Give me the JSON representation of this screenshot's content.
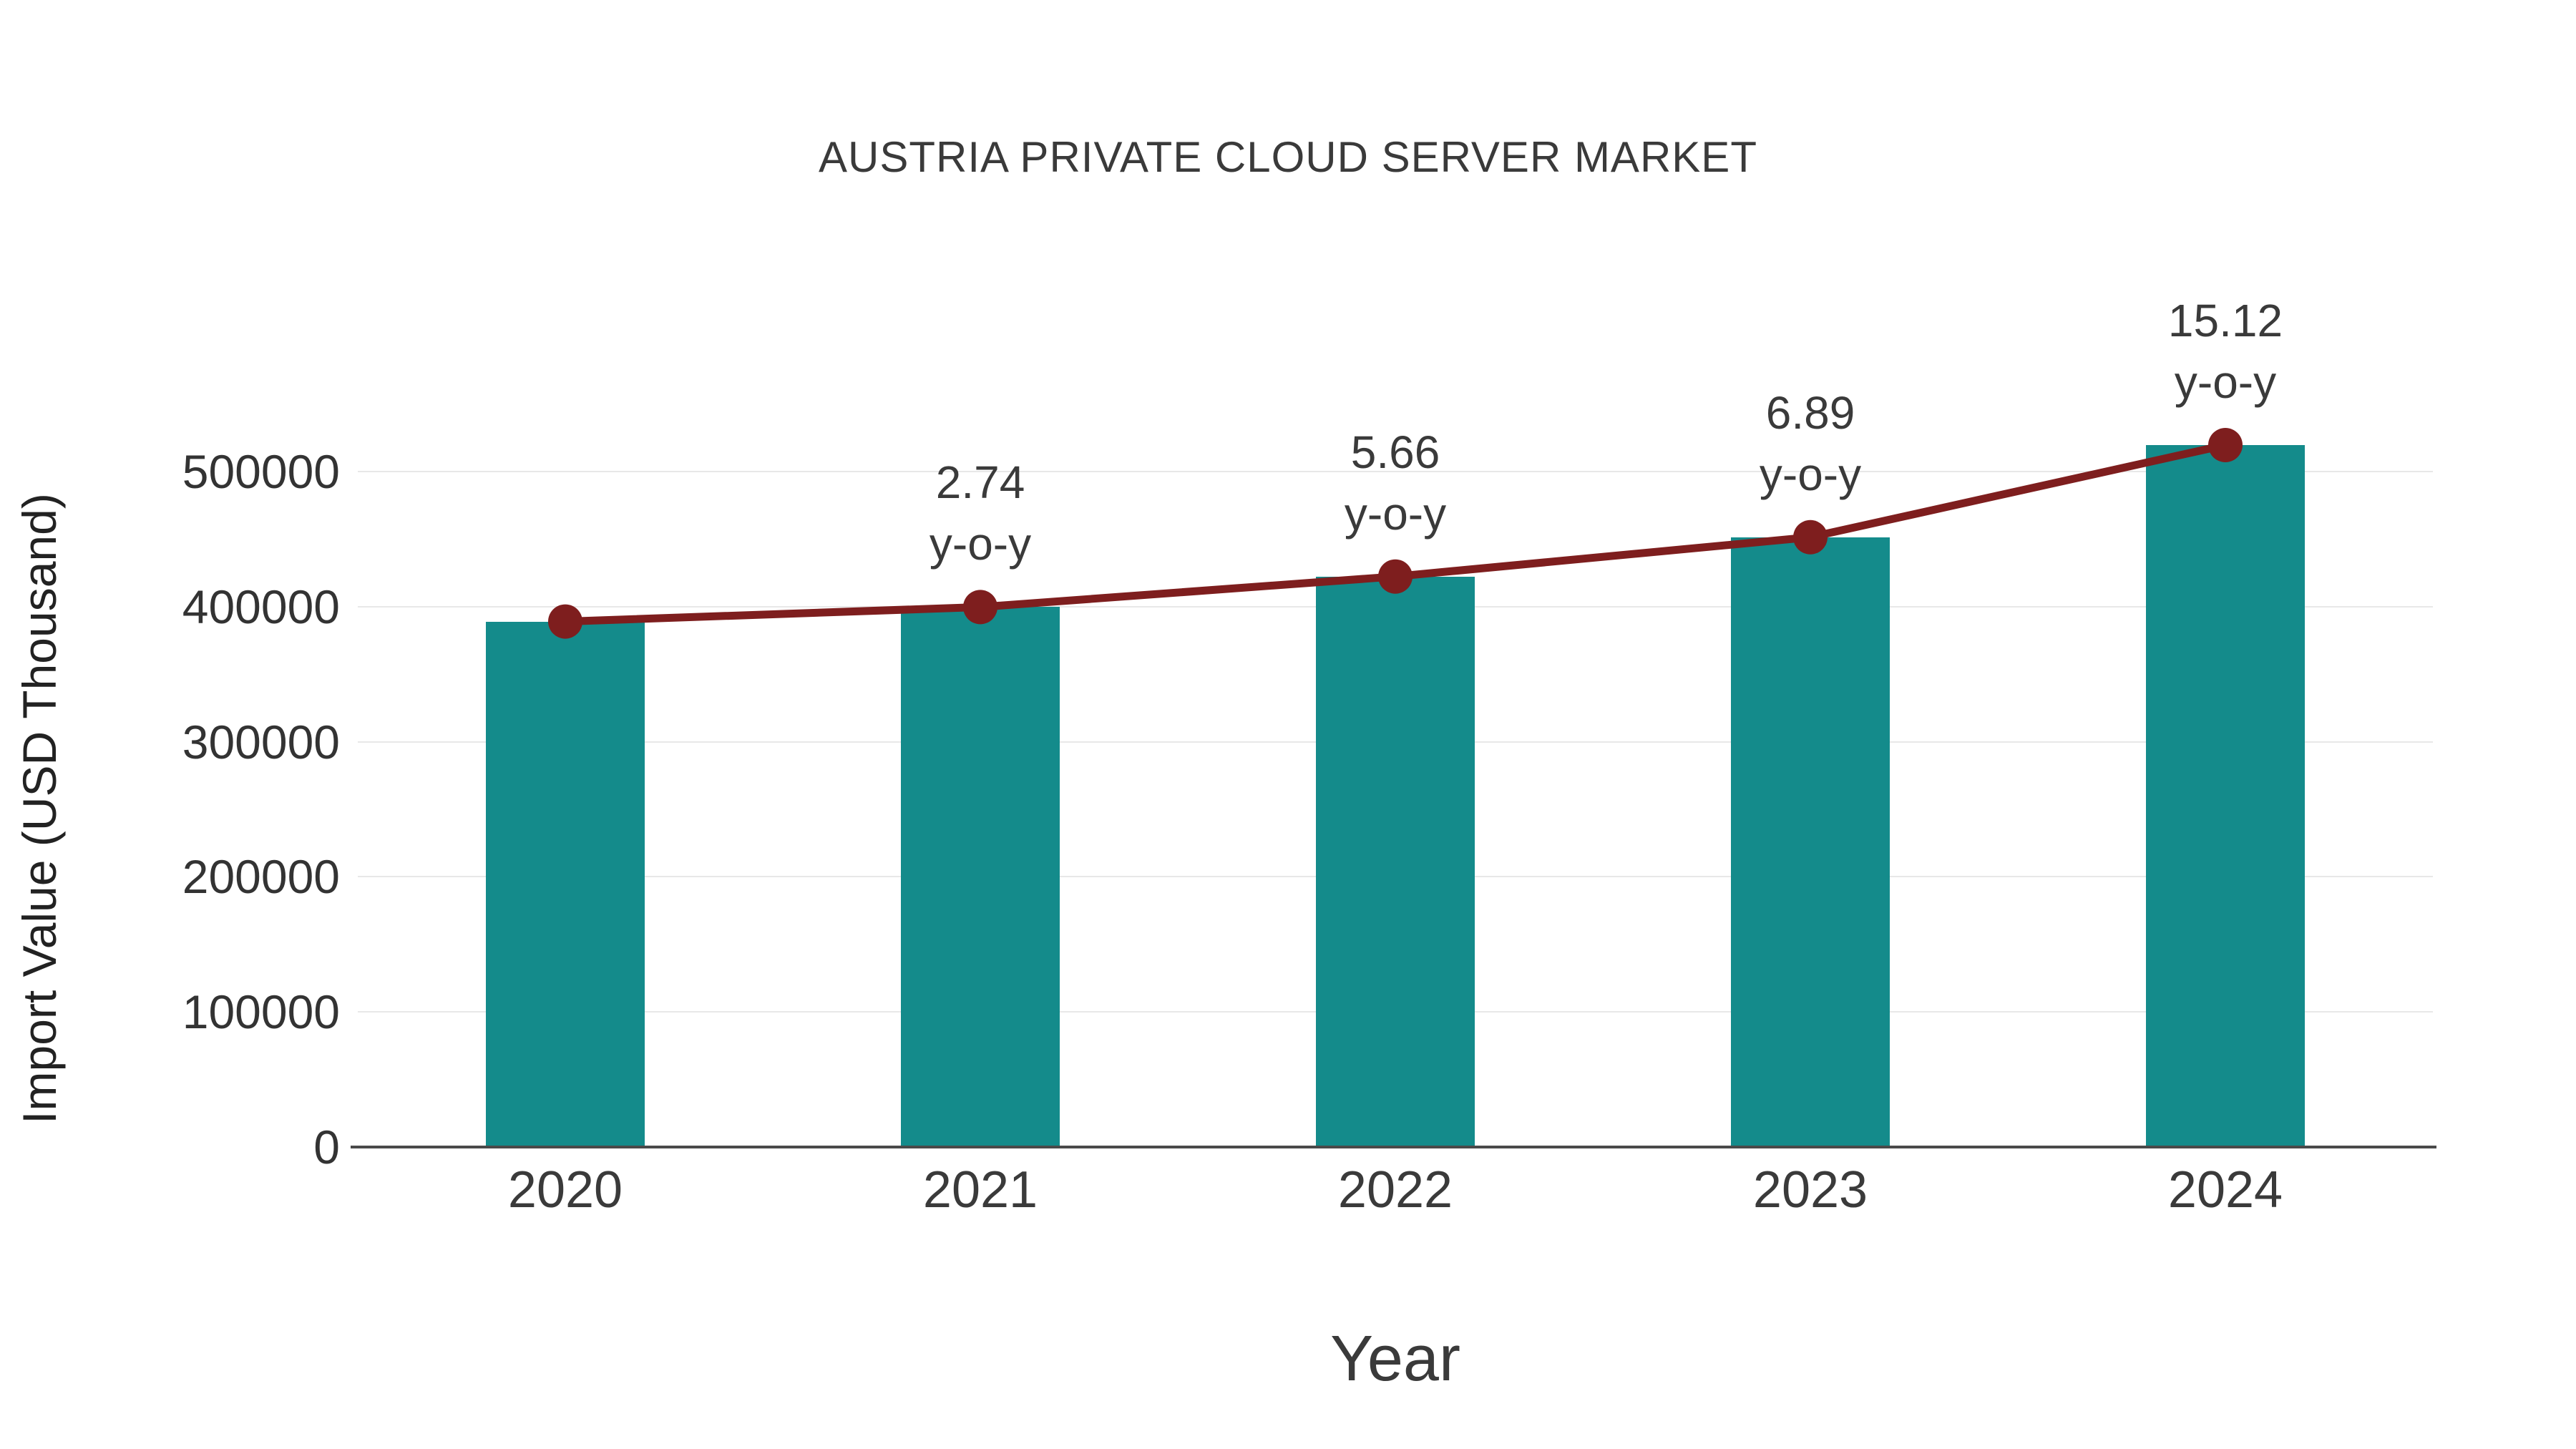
{
  "chart_data": {
    "type": "bar",
    "subtype": "bar-with-line-overlay",
    "title": "AUSTRIA PRIVATE CLOUD SERVER MARKET",
    "xlabel": "Year",
    "ylabel": "Import Value (USD Thousand)",
    "categories": [
      "2020",
      "2021",
      "2022",
      "2023",
      "2024"
    ],
    "series": [
      {
        "name": "Import Value",
        "type": "bar",
        "color": "#148b8b",
        "values": [
          389000,
          399700,
          422300,
          451400,
          519600
        ]
      },
      {
        "name": "Import Value trend line",
        "type": "line",
        "color": "#7e1e1e",
        "values": [
          389000,
          399700,
          422300,
          451400,
          519600
        ]
      }
    ],
    "annotations": [
      {
        "category": "2021",
        "text": "2.74",
        "subtext": "y-o-y"
      },
      {
        "category": "2022",
        "text": "5.66",
        "subtext": "y-o-y"
      },
      {
        "category": "2023",
        "text": "6.89",
        "subtext": "y-o-y"
      },
      {
        "category": "2024",
        "text": "15.12",
        "subtext": "y-o-y"
      }
    ],
    "yticks": [
      0,
      100000,
      200000,
      300000,
      400000,
      500000
    ],
    "ylim": [
      0,
      560000
    ],
    "grid": true,
    "legend_position": "none",
    "background_color": "#ffffff"
  }
}
